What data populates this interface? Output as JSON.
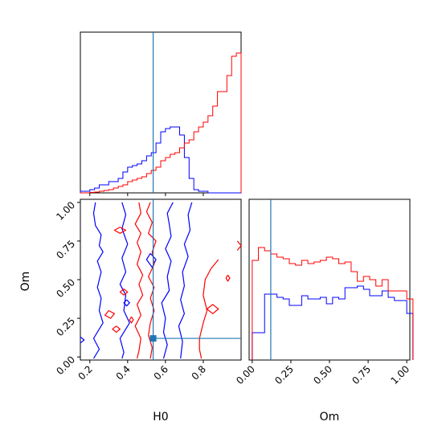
{
  "chart_data": [
    {
      "type": "histogram",
      "panel": "H0 marginal",
      "x_range": [
        0.15,
        1.0
      ],
      "truth_line": {
        "x": 0.535,
        "color": "#1f77b4"
      },
      "series": [
        {
          "color": "#0000ff",
          "bin_start": 0.15,
          "bin_width": 0.025,
          "values": [
            0.01,
            0.01,
            0.02,
            0.03,
            0.05,
            0.05,
            0.07,
            0.07,
            0.09,
            0.13,
            0.16,
            0.17,
            0.18,
            0.2,
            0.23,
            0.25,
            0.31,
            0.38,
            0.4,
            0.41,
            0.41,
            0.36,
            0.22,
            0.09,
            0.02,
            0.01,
            0.01,
            0,
            0,
            0,
            0,
            0,
            0,
            0
          ]
        },
        {
          "color": "#ff0000",
          "bin_start": 0.15,
          "bin_width": 0.025,
          "values": [
            0,
            0,
            0.003,
            0.005,
            0.01,
            0.015,
            0.02,
            0.03,
            0.04,
            0.05,
            0.07,
            0.08,
            0.09,
            0.1,
            0.12,
            0.14,
            0.16,
            0.2,
            0.22,
            0.24,
            0.25,
            0.28,
            0.31,
            0.33,
            0.38,
            0.41,
            0.44,
            0.48,
            0.54,
            0.63,
            0.63,
            0.73,
            0.85,
            0.87
          ]
        }
      ]
    },
    {
      "type": "contour",
      "panel": "H0 vs Om",
      "xlabel": "H0",
      "ylabel": "Om",
      "x_range": [
        0.15,
        1.0
      ],
      "y_range": [
        -0.02,
        1.02
      ],
      "x_ticks": [
        "0.2",
        "0.4",
        "0.6",
        "0.8"
      ],
      "y_ticks": [
        "0.00",
        "0.25",
        "0.50",
        "0.75",
        "1.00"
      ],
      "truth_point": {
        "x": 0.535,
        "y": 0.12,
        "color": "#1f77b4"
      },
      "series": [
        {
          "color": "#0000ff",
          "contours": [
            [
              [
                0.23,
                1.0
              ],
              [
                0.22,
                0.93
              ],
              [
                0.23,
                0.85
              ],
              [
                0.26,
                0.79
              ],
              [
                0.25,
                0.72
              ],
              [
                0.27,
                0.68
              ],
              [
                0.24,
                0.62
              ],
              [
                0.26,
                0.55
              ],
              [
                0.24,
                0.45
              ],
              [
                0.26,
                0.38
              ],
              [
                0.25,
                0.3
              ],
              [
                0.27,
                0.22
              ],
              [
                0.22,
                0.12
              ],
              [
                0.25,
                0.05
              ],
              [
                0.22,
                -0.01
              ]
            ],
            [
              [
                0.37,
                1.0
              ],
              [
                0.39,
                0.92
              ],
              [
                0.37,
                0.83
              ],
              [
                0.4,
                0.73
              ],
              [
                0.37,
                0.64
              ],
              [
                0.39,
                0.55
              ],
              [
                0.36,
                0.47
              ],
              [
                0.39,
                0.4
              ],
              [
                0.38,
                0.3
              ],
              [
                0.41,
                0.22
              ],
              [
                0.36,
                0.12
              ],
              [
                0.38,
                0.03
              ],
              [
                0.37,
                -0.01
              ]
            ],
            [
              [
                0.64,
                1.0
              ],
              [
                0.61,
                0.93
              ],
              [
                0.62,
                0.86
              ],
              [
                0.63,
                0.78
              ],
              [
                0.6,
                0.7
              ],
              [
                0.63,
                0.62
              ],
              [
                0.61,
                0.52
              ],
              [
                0.62,
                0.43
              ],
              [
                0.58,
                0.35
              ],
              [
                0.6,
                0.25
              ],
              [
                0.59,
                0.16
              ],
              [
                0.61,
                0.08
              ],
              [
                0.59,
                -0.01
              ]
            ],
            [
              [
                0.74,
                1.0
              ],
              [
                0.72,
                0.92
              ],
              [
                0.73,
                0.82
              ],
              [
                0.7,
                0.73
              ],
              [
                0.72,
                0.65
              ],
              [
                0.69,
                0.55
              ],
              [
                0.7,
                0.46
              ],
              [
                0.68,
                0.37
              ],
              [
                0.7,
                0.28
              ],
              [
                0.67,
                0.2
              ],
              [
                0.69,
                0.1
              ],
              [
                0.68,
                -0.01
              ]
            ],
            [
              [
                0.52,
                0.67
              ],
              [
                0.5,
                0.63
              ],
              [
                0.53,
                0.58
              ],
              [
                0.55,
                0.63
              ],
              [
                0.52,
                0.67
              ]
            ],
            [
              [
                0.395,
                0.37
              ],
              [
                0.41,
                0.35
              ],
              [
                0.395,
                0.33
              ],
              [
                0.38,
                0.35
              ],
              [
                0.395,
                0.37
              ]
            ],
            [
              [
                0.15,
                0.13
              ],
              [
                0.17,
                0.11
              ],
              [
                0.15,
                0.09
              ]
            ]
          ]
        },
        {
          "color": "#ff0000",
          "contours": [
            [
              [
                0.46,
                1.0
              ],
              [
                0.47,
                0.93
              ],
              [
                0.44,
                0.86
              ],
              [
                0.47,
                0.8
              ],
              [
                0.45,
                0.74
              ],
              [
                0.47,
                0.68
              ],
              [
                0.45,
                0.6
              ],
              [
                0.48,
                0.53
              ],
              [
                0.46,
                0.47
              ],
              [
                0.48,
                0.4
              ],
              [
                0.45,
                0.34
              ],
              [
                0.47,
                0.27
              ],
              [
                0.44,
                0.2
              ],
              [
                0.47,
                0.12
              ],
              [
                0.46,
                0.04
              ],
              [
                0.45,
                -0.01
              ]
            ],
            [
              [
                0.52,
                1.0
              ],
              [
                0.5,
                0.94
              ],
              [
                0.53,
                0.87
              ],
              [
                0.51,
                0.8
              ],
              [
                0.55,
                0.75
              ],
              [
                0.53,
                0.68
              ],
              [
                0.54,
                0.6
              ],
              [
                0.51,
                0.52
              ],
              [
                0.54,
                0.45
              ],
              [
                0.52,
                0.38
              ],
              [
                0.54,
                0.3
              ],
              [
                0.52,
                0.22
              ],
              [
                0.51,
                0.14
              ],
              [
                0.53,
                0.06
              ],
              [
                0.52,
                -0.01
              ]
            ],
            [
              [
                0.36,
                0.84
              ],
              [
                0.39,
                0.82
              ],
              [
                0.36,
                0.8
              ],
              [
                0.33,
                0.82
              ],
              [
                0.36,
                0.84
              ]
            ],
            [
              [
                0.98,
                0.75
              ],
              [
                1.0,
                0.72
              ],
              [
                0.98,
                0.69
              ]
            ],
            [
              [
                0.88,
                0.63
              ],
              [
                0.84,
                0.57
              ],
              [
                0.81,
                0.5
              ],
              [
                0.8,
                0.4
              ],
              [
                0.82,
                0.3
              ],
              [
                0.8,
                0.22
              ],
              [
                0.78,
                0.12
              ],
              [
                0.78,
                0.05
              ],
              [
                0.79,
                -0.01
              ]
            ],
            [
              [
                0.3,
                0.3
              ],
              [
                0.33,
                0.28
              ],
              [
                0.31,
                0.25
              ],
              [
                0.28,
                0.27
              ],
              [
                0.3,
                0.3
              ]
            ],
            [
              [
                0.34,
                0.2
              ],
              [
                0.36,
                0.18
              ],
              [
                0.34,
                0.16
              ],
              [
                0.32,
                0.18
              ],
              [
                0.34,
                0.2
              ]
            ],
            [
              [
                0.42,
                0.26
              ],
              [
                0.43,
                0.24
              ],
              [
                0.42,
                0.22
              ],
              [
                0.41,
                0.24
              ],
              [
                0.42,
                0.26
              ]
            ],
            [
              [
                0.85,
                0.34
              ],
              [
                0.88,
                0.31
              ],
              [
                0.85,
                0.28
              ],
              [
                0.82,
                0.31
              ],
              [
                0.85,
                0.34
              ]
            ],
            [
              [
                0.93,
                0.53
              ],
              [
                0.94,
                0.51
              ],
              [
                0.93,
                0.49
              ],
              [
                0.92,
                0.51
              ],
              [
                0.93,
                0.53
              ]
            ],
            [
              [
                0.38,
                0.44
              ],
              [
                0.4,
                0.42
              ],
              [
                0.38,
                0.4
              ],
              [
                0.36,
                0.42
              ],
              [
                0.38,
                0.44
              ]
            ]
          ]
        }
      ]
    },
    {
      "type": "histogram",
      "panel": "Om marginal",
      "xlabel": "Om",
      "x_range": [
        -0.02,
        1.02
      ],
      "x_ticks": [
        "0.00",
        "0.25",
        "0.50",
        "0.75",
        "1.00"
      ],
      "truth_line": {
        "x": 0.12,
        "color": "#1f77b4"
      },
      "series": [
        {
          "color": "#0000ff",
          "bin_start": 0.0,
          "bin_width": 0.04,
          "values": [
            0.17,
            0.17,
            0.41,
            0.41,
            0.39,
            0.38,
            0.34,
            0.34,
            0.4,
            0.38,
            0.38,
            0.39,
            0.35,
            0.39,
            0.38,
            0.45,
            0.45,
            0.46,
            0.44,
            0.4,
            0.4,
            0.43,
            0.39,
            0.37,
            0.37,
            0.29
          ]
        },
        {
          "color": "#ff0000",
          "bin_start": 0.0,
          "bin_width": 0.04,
          "values": [
            0.62,
            0.7,
            0.68,
            0.66,
            0.64,
            0.63,
            0.6,
            0.59,
            0.62,
            0.6,
            0.61,
            0.62,
            0.64,
            0.63,
            0.6,
            0.61,
            0.55,
            0.49,
            0.52,
            0.5,
            0.46,
            0.5,
            0.43,
            0.43,
            0.43,
            0.38
          ]
        }
      ]
    }
  ],
  "axes": {
    "h0_label": "H0",
    "om_label": "Om",
    "h0_ticks": [
      "0.2",
      "0.4",
      "0.6",
      "0.8"
    ],
    "om_ticks": [
      "0.00",
      "0.25",
      "0.50",
      "0.75",
      "1.00"
    ]
  }
}
